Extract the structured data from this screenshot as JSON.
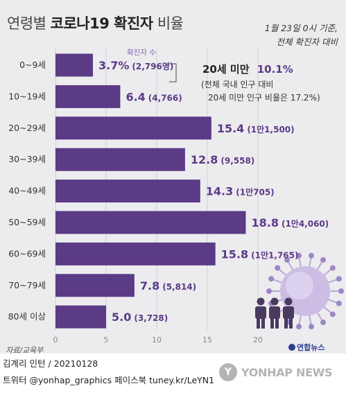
{
  "title": {
    "part1": "연령별",
    "part2": "코로나19 확진자",
    "part3": "비율"
  },
  "note": {
    "line1": "1월 23일 0시 기준,",
    "line2": "전체 확진자 대비"
  },
  "legend": {
    "label": "확진자 수"
  },
  "callout": {
    "headline": "20세 미만",
    "value": "10.1%",
    "line2": "(전체 국내 인구 대비",
    "line3": "20세 미만 인구 비율은 17.2%)"
  },
  "colors": {
    "bar": "#5b3a86",
    "background": "#ececef",
    "accent": "#5b3a86"
  },
  "chart_data": {
    "type": "bar",
    "orientation": "horizontal",
    "title": "연령별 코로나19 확진자 비율",
    "categories": [
      "0~9세",
      "10~19세",
      "20~29세",
      "30~39세",
      "40~49세",
      "50~59세",
      "60~69세",
      "70~79세",
      "80세 이상"
    ],
    "values": [
      3.7,
      6.4,
      15.4,
      12.8,
      14.3,
      18.8,
      15.8,
      7.8,
      5.0
    ],
    "value_labels": [
      "3.7%",
      "6.4",
      "15.4",
      "12.8",
      "14.3",
      "18.8",
      "15.8",
      "7.8",
      "5.0"
    ],
    "count_labels": [
      "(2,796명)",
      "(4,766)",
      "(1만1,500)",
      "(9,558)",
      "(1만705)",
      "(1만4,060)",
      "(1만1,765)",
      "(5,814)",
      "(3,728)"
    ],
    "xlim": [
      0,
      20
    ],
    "xticks": [
      "0",
      "5",
      "10",
      "15",
      "20"
    ],
    "xtick_values": [
      0,
      5,
      10,
      15,
      20
    ],
    "grid": true
  },
  "source": "자료/교육부",
  "footer": {
    "line1": "김계리 인턴 / 20210128",
    "line2": "트위터 @yonhap_graphics  페이스북 tuney.kr/LeYN1"
  },
  "logo": {
    "small": "연합뉴스",
    "watermark": "YONHAP NEWS",
    "watermark_icon": "yonhap-logo-icon"
  },
  "icons": [
    "people-icon",
    "virus-icon"
  ]
}
